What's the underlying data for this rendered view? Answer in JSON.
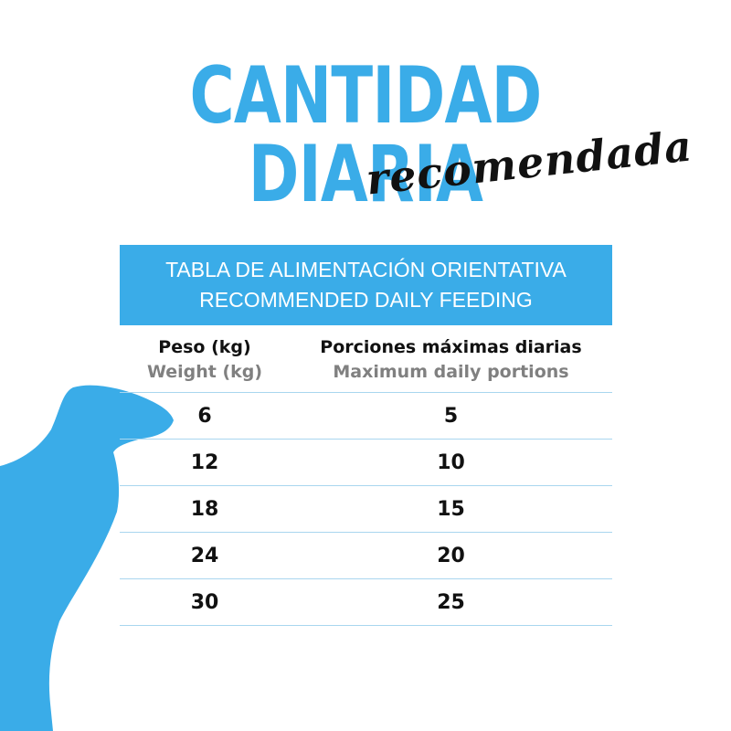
{
  "title": "CANTIDAD DIARIA",
  "subtitle": "recomendada",
  "table_header": {
    "line1": "TABLA DE ALIMENTACIÓN ORIENTATIVA",
    "line2": "RECOMMENDED DAILY FEEDING"
  },
  "columns": [
    {
      "main": "Peso (kg)",
      "sub": "Weight (kg)"
    },
    {
      "main": "Porciones máximas diarias",
      "sub": "Maximum daily portions"
    }
  ],
  "rows": [
    {
      "weight": "6",
      "portions": "5"
    },
    {
      "weight": "12",
      "portions": "10"
    },
    {
      "weight": "18",
      "portions": "15"
    },
    {
      "weight": "24",
      "portions": "20"
    },
    {
      "weight": "30",
      "portions": "25"
    }
  ],
  "colors": {
    "accent": "#3aace8",
    "text": "#111111",
    "subtext": "#808080"
  },
  "icons": [
    "dog-silhouette-icon"
  ]
}
